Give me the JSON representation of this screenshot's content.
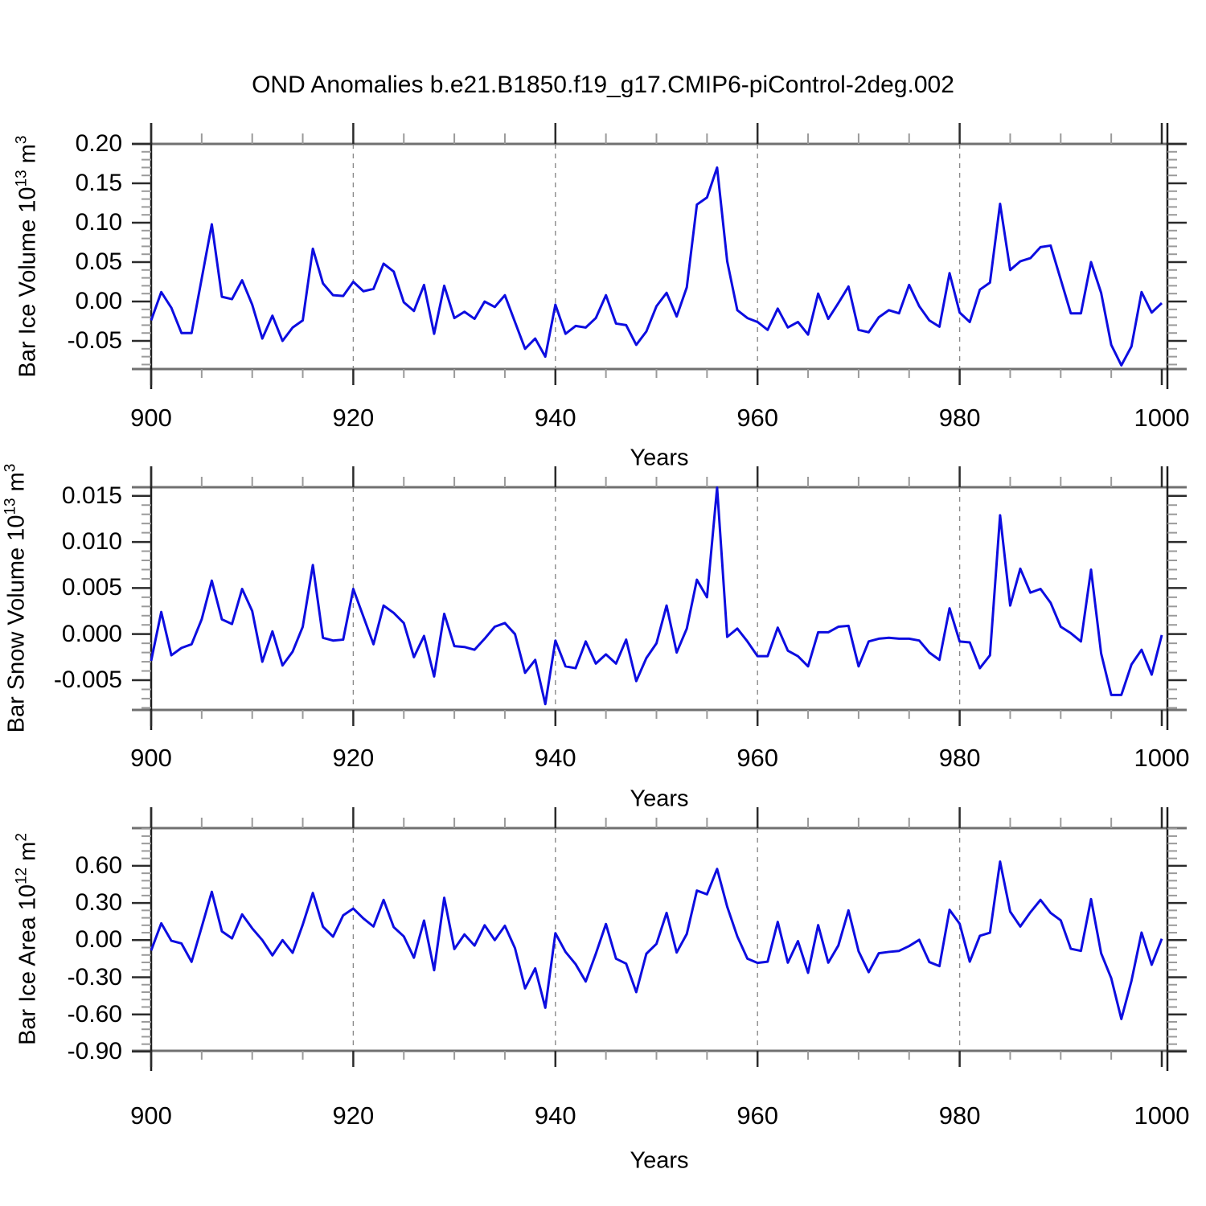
{
  "title": "OND Anomalies b.e21.B1850.f19_g17.CMIP6-piControl-2deg.002",
  "line_color": "#0d0de0",
  "chart_data": [
    {
      "type": "line",
      "ylabel_base": "Bar Ice Volume 10",
      "ylabel_base_exp": "13",
      "ylabel_unit": " m",
      "ylabel_unit_exp": "3",
      "xlabel": "Years",
      "x_start": 900,
      "x_end": 1000,
      "x_step": 1,
      "xticks": [
        900,
        920,
        940,
        960,
        980,
        1000
      ],
      "xtick_labels": [
        "900",
        "920",
        "940",
        "960",
        "980",
        "1000"
      ],
      "x_minor_step": 5,
      "grid_x": [
        920,
        940,
        960,
        980
      ],
      "ylim": [
        -0.0857,
        0.2
      ],
      "ytick_values": [
        0.2,
        0.15,
        0.1,
        0.05,
        0.0,
        -0.05
      ],
      "ytick_labels": [
        "0.20",
        "0.15",
        "0.10",
        "0.05",
        "0.00",
        "-0.05"
      ],
      "y_minor_step": 0.01,
      "values": [
        -0.024,
        0.012,
        -0.008,
        -0.04,
        -0.04,
        0.029,
        0.098,
        0.006,
        0.003,
        0.027,
        -0.004,
        -0.047,
        -0.018,
        -0.05,
        -0.033,
        -0.024,
        0.067,
        0.023,
        0.008,
        0.007,
        0.025,
        0.013,
        0.016,
        0.048,
        0.038,
        -0.001,
        -0.012,
        0.021,
        -0.041,
        0.02,
        -0.021,
        -0.013,
        -0.022,
        0.0,
        -0.007,
        0.008,
        -0.026,
        -0.06,
        -0.047,
        -0.07,
        -0.004,
        -0.041,
        -0.031,
        -0.033,
        -0.021,
        0.008,
        -0.028,
        -0.03,
        -0.055,
        -0.038,
        -0.006,
        0.011,
        -0.019,
        0.018,
        0.123,
        0.132,
        0.17,
        0.051,
        -0.011,
        -0.021,
        -0.026,
        -0.036,
        -0.009,
        -0.033,
        -0.026,
        -0.042,
        0.01,
        -0.022,
        -0.002,
        0.019,
        -0.036,
        -0.039,
        -0.02,
        -0.011,
        -0.015,
        0.021,
        -0.006,
        -0.024,
        -0.032,
        0.036,
        -0.014,
        -0.026,
        0.015,
        0.024,
        0.124,
        0.04,
        0.051,
        0.055,
        0.069,
        0.071,
        0.028,
        -0.015,
        -0.015,
        0.05,
        0.011,
        -0.055,
        -0.081,
        -0.057,
        0.012,
        -0.014,
        -0.002
      ]
    },
    {
      "type": "line",
      "ylabel_base": "Bar Snow Volume 10",
      "ylabel_base_exp": "13",
      "ylabel_unit": " m",
      "ylabel_unit_exp": "3",
      "xlabel": "Years",
      "x_start": 900,
      "x_end": 1000,
      "x_step": 1,
      "xticks": [
        900,
        920,
        940,
        960,
        980,
        1000
      ],
      "xtick_labels": [
        "900",
        "920",
        "940",
        "960",
        "980",
        "1000"
      ],
      "x_minor_step": 5,
      "grid_x": [
        920,
        940,
        960,
        980
      ],
      "ylim": [
        -0.00823,
        0.01594
      ],
      "ytick_values": [
        0.015,
        0.01,
        0.005,
        0.0,
        -0.005
      ],
      "ytick_labels": [
        "0.015",
        "0.010",
        "0.005",
        "0.000",
        "-0.005"
      ],
      "y_minor_step": 0.001,
      "values": [
        -0.0029,
        0.0024,
        -0.0023,
        -0.0015,
        -0.0011,
        0.0016,
        0.0058,
        0.0016,
        0.0011,
        0.0049,
        0.0025,
        -0.003,
        0.0003,
        -0.0034,
        -0.0019,
        0.0008,
        0.0075,
        -0.0004,
        -0.0007,
        -0.0006,
        0.0049,
        0.0019,
        -0.0011,
        0.0031,
        0.0023,
        0.0012,
        -0.0025,
        -0.0002,
        -0.0046,
        0.0022,
        -0.0013,
        -0.0014,
        -0.0017,
        -0.0005,
        0.0008,
        0.0012,
        0.0,
        -0.0042,
        -0.0028,
        -0.0076,
        -0.0007,
        -0.0035,
        -0.0037,
        -0.0008,
        -0.0032,
        -0.0022,
        -0.0032,
        -0.0006,
        -0.0051,
        -0.0026,
        -0.001,
        0.0031,
        -0.002,
        0.0006,
        0.0059,
        0.004,
        0.0159,
        -0.0003,
        0.0006,
        -0.0008,
        -0.0024,
        -0.0024,
        0.0007,
        -0.0018,
        -0.0024,
        -0.0035,
        0.0002,
        0.0002,
        0.0008,
        0.0009,
        -0.0035,
        -0.0008,
        -0.0005,
        -0.0004,
        -0.0005,
        -0.0005,
        -0.0007,
        -0.002,
        -0.0028,
        0.0028,
        -0.0008,
        -0.0009,
        -0.0037,
        -0.0023,
        0.0129,
        0.0031,
        0.0071,
        0.0045,
        0.0049,
        0.0034,
        0.0008,
        0.0001,
        -0.0008,
        0.007,
        -0.0021,
        -0.0066,
        -0.0066,
        -0.0033,
        -0.0017,
        -0.0044,
        -0.0001
      ]
    },
    {
      "type": "line",
      "ylabel_base": "Bar Ice Area 10",
      "ylabel_base_exp": "12",
      "ylabel_unit": " m",
      "ylabel_unit_exp": "2",
      "xlabel": "Years",
      "x_start": 900,
      "x_end": 1000,
      "x_step": 1,
      "xticks": [
        900,
        920,
        940,
        960,
        980,
        1000
      ],
      "xtick_labels": [
        "900",
        "920",
        "940",
        "960",
        "980",
        "1000"
      ],
      "x_minor_step": 5,
      "grid_x": [
        920,
        940,
        960,
        980
      ],
      "ylim": [
        -0.894,
        0.9045
      ],
      "ytick_values": [
        0.6,
        0.3,
        0.0,
        -0.3,
        -0.6,
        -0.9
      ],
      "ytick_labels": [
        "0.60",
        "0.30",
        "0.00",
        "-0.30",
        "-0.60",
        "-0.90"
      ],
      "y_minor_step": 0.06,
      "values": [
        -0.084,
        0.136,
        -0.005,
        -0.027,
        -0.175,
        0.105,
        0.39,
        0.071,
        0.014,
        0.208,
        0.095,
        0.0,
        -0.123,
        0.0,
        -0.102,
        0.125,
        0.381,
        0.108,
        0.028,
        0.2,
        0.255,
        0.175,
        0.11,
        0.325,
        0.105,
        0.03,
        -0.142,
        0.158,
        -0.243,
        0.342,
        -0.072,
        0.046,
        -0.044,
        0.12,
        0.0,
        0.116,
        -0.065,
        -0.39,
        -0.228,
        -0.546,
        0.056,
        -0.095,
        -0.194,
        -0.334,
        -0.11,
        0.13,
        -0.15,
        -0.19,
        -0.42,
        -0.11,
        -0.03,
        0.22,
        -0.1,
        0.05,
        0.4,
        0.37,
        0.575,
        0.27,
        0.03,
        -0.15,
        -0.184,
        -0.174,
        0.147,
        -0.182,
        -0.008,
        -0.264,
        0.121,
        -0.182,
        -0.043,
        0.24,
        -0.09,
        -0.259,
        -0.106,
        -0.095,
        -0.087,
        -0.048,
        0.003,
        -0.177,
        -0.21,
        0.245,
        0.132,
        -0.174,
        0.035,
        0.06,
        0.634,
        0.23,
        0.11,
        0.225,
        0.325,
        0.22,
        0.16,
        -0.07,
        -0.087,
        0.331,
        -0.106,
        -0.308,
        -0.637,
        -0.329,
        0.061,
        -0.199,
        0.011
      ]
    }
  ]
}
